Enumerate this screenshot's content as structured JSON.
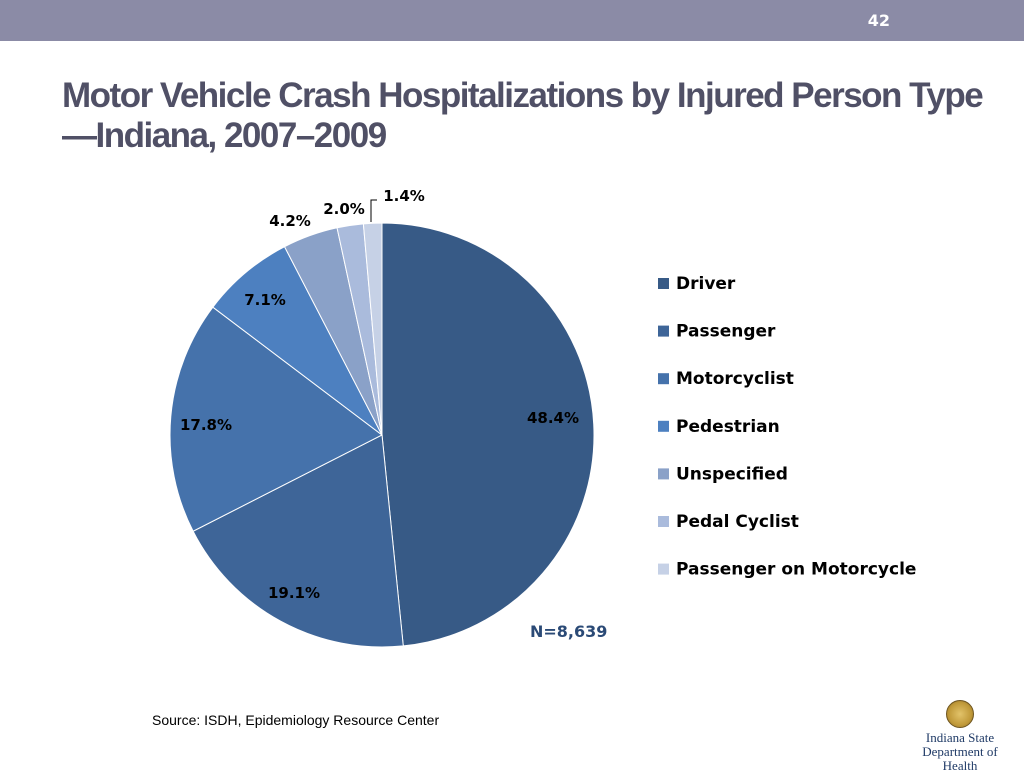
{
  "slide": {
    "number": "42",
    "title": "Motor Vehicle Crash Hospitalizations by Injured Person Type—Indiana, 2007–2009",
    "note": "N=8,639",
    "source": "Source: ISDH, Epidemiology Resource Center",
    "logo": {
      "line1": "Indiana State",
      "line2": "Department of Health"
    }
  },
  "chart_data": {
    "type": "pie",
    "categories": [
      "Driver",
      "Passenger",
      "Motorcyclist",
      "Pedestrian",
      "Unspecified",
      "Pedal Cyclist",
      "Passenger on Motorcycle"
    ],
    "values": [
      48.4,
      19.1,
      17.8,
      7.1,
      4.2,
      2.0,
      1.4
    ],
    "labels": [
      "48.4%",
      "19.1%",
      "17.8%",
      "7.1%",
      "4.2%",
      "2.0%",
      "1.4%"
    ],
    "colors": [
      "#375a86",
      "#3e6598",
      "#4572ab",
      "#4d80c0",
      "#8aa1c8",
      "#aabbdc",
      "#c6d1e6"
    ],
    "legend_position": "right",
    "start_angle": "12 o'clock",
    "direction": "clockwise"
  }
}
